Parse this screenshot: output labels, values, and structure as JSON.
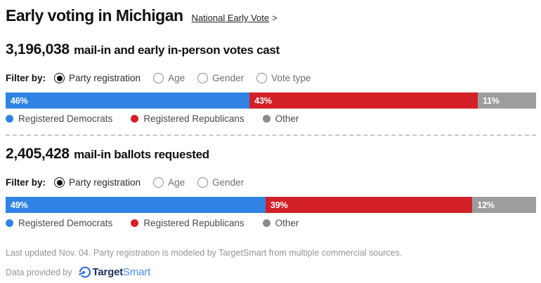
{
  "header": {
    "title": "Early voting in Michigan",
    "link_label": "National Early Vote",
    "link_arrow": ">"
  },
  "sections": [
    {
      "heading_number": "3,196,038",
      "heading_text": "mail-in and early in-person votes cast",
      "filter_label": "Filter by:",
      "filters": [
        {
          "label": "Party registration",
          "selected": true
        },
        {
          "label": "Age",
          "selected": false
        },
        {
          "label": "Gender",
          "selected": false
        },
        {
          "label": "Vote type",
          "selected": false
        }
      ],
      "bar": [
        {
          "label": "46%",
          "value": 46,
          "color": "#3183e3"
        },
        {
          "label": "43%",
          "value": 43,
          "color": "#d32027"
        },
        {
          "label": "11%",
          "value": 11,
          "color": "#9d9d9d"
        }
      ],
      "legend": [
        {
          "label": "Registered Democrats",
          "color": "#3183e3"
        },
        {
          "label": "Registered Republicans",
          "color": "#d32027"
        },
        {
          "label": "Other",
          "color": "#8a8a8a"
        }
      ]
    },
    {
      "heading_number": "2,405,428",
      "heading_text": "mail-in ballots requested",
      "filter_label": "Filter by:",
      "filters": [
        {
          "label": "Party registration",
          "selected": true
        },
        {
          "label": "Age",
          "selected": false
        },
        {
          "label": "Gender",
          "selected": false
        }
      ],
      "bar": [
        {
          "label": "49%",
          "value": 49,
          "color": "#3183e3"
        },
        {
          "label": "39%",
          "value": 39,
          "color": "#d32027"
        },
        {
          "label": "12%",
          "value": 12,
          "color": "#9d9d9d"
        }
      ],
      "legend": [
        {
          "label": "Registered Democrats",
          "color": "#3183e3"
        },
        {
          "label": "Registered Republicans",
          "color": "#d32027"
        },
        {
          "label": "Other",
          "color": "#8a8a8a"
        }
      ]
    }
  ],
  "footer": {
    "note": "Last updated Nov. 04. Party registration is modeled by TargetSmart from multiple commercial sources.",
    "provider_prefix": "Data provided by",
    "brand_dark": "Target",
    "brand_light": "Smart",
    "brand_dark_color": "#1d2d5f",
    "brand_light_color": "#4a8ce8",
    "brand_mark_color": "#2e6fe0"
  },
  "chart_data": [
    {
      "type": "bar",
      "subtype": "horizontal-stacked-100pct",
      "title": "3,196,038 mail-in and early in-person votes cast",
      "filter_selected": "Party registration",
      "categories": [
        "Registered Democrats",
        "Registered Republicans",
        "Other"
      ],
      "values": [
        46,
        43,
        11
      ],
      "unit": "%",
      "colors": [
        "#3183e3",
        "#d32027",
        "#9d9d9d"
      ],
      "legend_position": "bottom",
      "total_votes": "3,196,038"
    },
    {
      "type": "bar",
      "subtype": "horizontal-stacked-100pct",
      "title": "2,405,428 mail-in ballots requested",
      "filter_selected": "Party registration",
      "categories": [
        "Registered Democrats",
        "Registered Republicans",
        "Other"
      ],
      "values": [
        49,
        39,
        12
      ],
      "unit": "%",
      "colors": [
        "#3183e3",
        "#d32027",
        "#9d9d9d"
      ],
      "legend_position": "bottom",
      "total_votes": "2,405,428"
    }
  ]
}
